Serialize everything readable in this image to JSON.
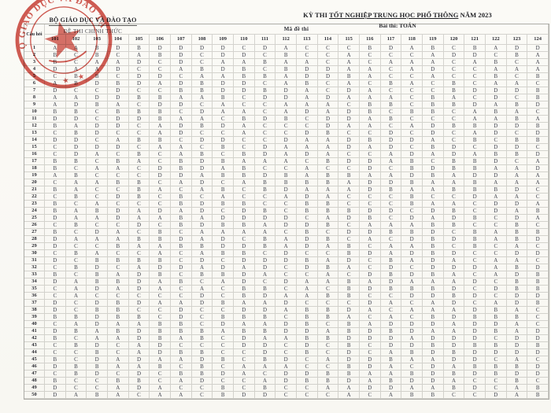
{
  "header": {
    "org_line1": "BỘ GIÁO DỤC VÀ ĐÀO TẠO",
    "org_line2": "ĐỀ THI CHÍNH THỨC",
    "title_pre": "KỲ THI",
    "title_main": "TỐT NGHIỆP TRUNG HỌC PHỔ THÔNG",
    "title_year": "NĂM 2023",
    "subject_label": "Bài thi:",
    "subject_value": "TOÁN"
  },
  "stamp": {
    "text": "BỘ GIÁO DỤC VÀ ĐÀO TẠO",
    "color": "#c8392f"
  },
  "colors": {
    "stamp_red": "#c8392f",
    "ink": "#40434d",
    "paper": "#fbfaf6",
    "grid_line": "#8a8a82"
  },
  "table": {
    "corner_label": "Câu hỏi",
    "band_label": "Mã đề thi",
    "codes": [
      "101",
      "102",
      "103",
      "104",
      "105",
      "106",
      "107",
      "108",
      "109",
      "110",
      "111",
      "112",
      "113",
      "114",
      "115",
      "116",
      "117",
      "118",
      "119",
      "120",
      "121",
      "122",
      "123",
      "124"
    ],
    "rows": [
      {
        "q": "1",
        "a": "AABDBDDDDCDACCCBDABCBADD"
      },
      {
        "q": "2",
        "a": "BCBCABDCDDCBCCACCCADDCBA"
      },
      {
        "q": "3",
        "a": "BCAADCDCAABAACACAAACABCA"
      },
      {
        "q": "4",
        "a": "DAADCCABDBCBDDAACADCCAAA"
      },
      {
        "q": "5",
        "a": "CBBCDDCAABBADDBACCACCBCB"
      },
      {
        "q": "6",
        "a": "ABDBDADBDDCABCACBACBCAAC"
      },
      {
        "q": "7",
        "a": "DCCDCCBBDDBDACDACCCBDDDB"
      },
      {
        "q": "8",
        "a": "AADDBBAABCDDADAAACBACDCB"
      },
      {
        "q": "9",
        "a": "ADBACDDCACCAAACBBCBBDABD"
      },
      {
        "q": "10",
        "a": "BBCBBBCDAACADADBCBBCABAC"
      },
      {
        "q": "11",
        "a": "DDCDDBAACBDBCDDABCCCAABA"
      },
      {
        "q": "12",
        "a": "BADDCADBDACCCDAACADBBDDB"
      },
      {
        "q": "13",
        "a": "CBDCCADCCACCDBCCDCDCADCD"
      },
      {
        "q": "14",
        "a": "DDCABBCDDCCDAADBDDACBCBB"
      },
      {
        "q": "15",
        "a": "CDDDCAACBCDAAADADCBDCDDC"
      },
      {
        "q": "16",
        "a": "CDACBCABCBDADACCADADABBD"
      },
      {
        "q": "17",
        "a": "BBCBACBDBAAACBDDABCBBDCA"
      },
      {
        "q": "18",
        "a": "BCAACDBDABCCACCDCBDBBAAD"
      },
      {
        "q": "19",
        "a": "ABCCCDDABBDBABBAADBADDAA"
      },
      {
        "q": "20",
        "a": "CAABBCADCABBBBADDBAABAAA"
      },
      {
        "q": "21",
        "a": "BACCBACABCBDAAADBAABBBDC"
      },
      {
        "q": "22",
        "a": "CBCDBCBCACCADACCCBCCDAAC"
      },
      {
        "q": "23",
        "a": "BCACCCBDBBCCBBCCCBAACDDA"
      },
      {
        "q": "24",
        "a": "BABDADADCDBCBBBDDCDBCDAB"
      },
      {
        "q": "25",
        "a": "DAADAABADDDDCADBCDADBCDA"
      },
      {
        "q": "26",
        "a": "CBCCDCBDBBADDBCAAABBCCBC"
      },
      {
        "q": "27",
        "a": "BCDACBCAAAACBCDDBBDCBABB"
      },
      {
        "q": "28",
        "a": "DAAABBDADCBADBCACDBDBABD"
      },
      {
        "q": "29",
        "a": "DCCBAABBDDBADABCAABCBCAC"
      },
      {
        "q": "30",
        "a": "CBACCACABBCDCCBDADBDCCDD"
      },
      {
        "q": "31",
        "a": "DCBBBBCDCDDDBADCBADACAAC"
      },
      {
        "q": "32",
        "a": "CBDCADDADADCDBACDCDDDABD"
      },
      {
        "q": "33",
        "a": "BCBADBCBBDACCACDBDBACADB"
      },
      {
        "q": "34",
        "a": "DABBDABCADCDAABADAAADCBB"
      },
      {
        "q": "35",
        "a": "CADADACACBBCACBDBBBDCDBB"
      },
      {
        "q": "36",
        "a": "CACCCCCDCBDAABBCCDDBDCDD"
      },
      {
        "q": "37",
        "a": "DCDBDAADBAADCCCDACADCADB"
      },
      {
        "q": "38",
        "a": "DCBBCCDCCDDABBDACAAADBAC"
      },
      {
        "q": "39",
        "a": "BBDBBCDCBBBCBBACACBDBBBC"
      },
      {
        "q": "40",
        "a": "CADAABBCDAADBCBADDDADDAC"
      },
      {
        "q": "41",
        "a": "DBABDBBBABBDDABDBDAADBAD"
      },
      {
        "q": "42",
        "a": "BCAADBABCDAABBDDDADDDCDD"
      },
      {
        "q": "43",
        "a": "CBDCADCCCDDCDCBCDDBDBBDB"
      },
      {
        "q": "44",
        "a": "CCBCADBBCCDCBCDCABDBDDDD"
      },
      {
        "q": "45",
        "a": "BCDADAADBCBDCADDBAADDCAC"
      },
      {
        "q": "46",
        "a": "DBBAABCBCAAACCBDACDABBBD"
      },
      {
        "q": "47",
        "a": "CBDCDCBBDACDDBBAABDBDBDD"
      },
      {
        "q": "48",
        "a": "BCCBBCADCCADBBDABDDACCBC"
      },
      {
        "q": "49",
        "a": "DCCADACCBCBCCAADDAABDCAB"
      },
      {
        "q": "50",
        "a": "DABACAACBDDCCCACABBCCDAB"
      }
    ]
  }
}
